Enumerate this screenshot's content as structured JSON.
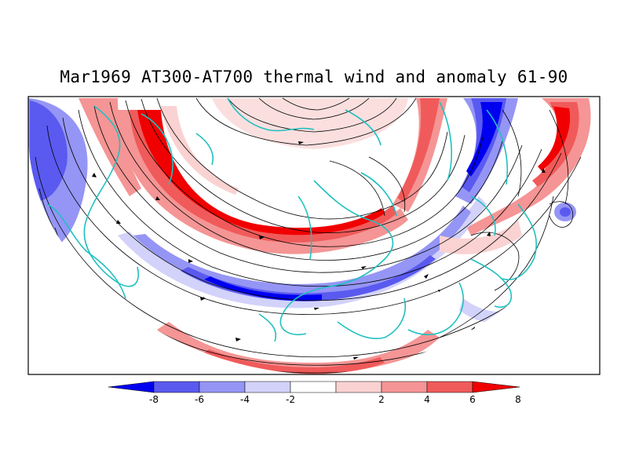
{
  "title": "Mar1969 AT300-AT700 thermal wind and anomaly 61-90",
  "colorbar": {
    "ticks": [
      "-8",
      "-6",
      "-4",
      "-2",
      "2",
      "4",
      "6",
      "8"
    ],
    "colors": [
      "#0000f0",
      "#5a5af0",
      "#9595f5",
      "#d2d2fa",
      "#ffffff",
      "#fad2d2",
      "#f59595",
      "#f05a5a",
      "#f00000"
    ]
  },
  "coastline_color": "#20c0c0",
  "streamline_color": "#000000"
}
